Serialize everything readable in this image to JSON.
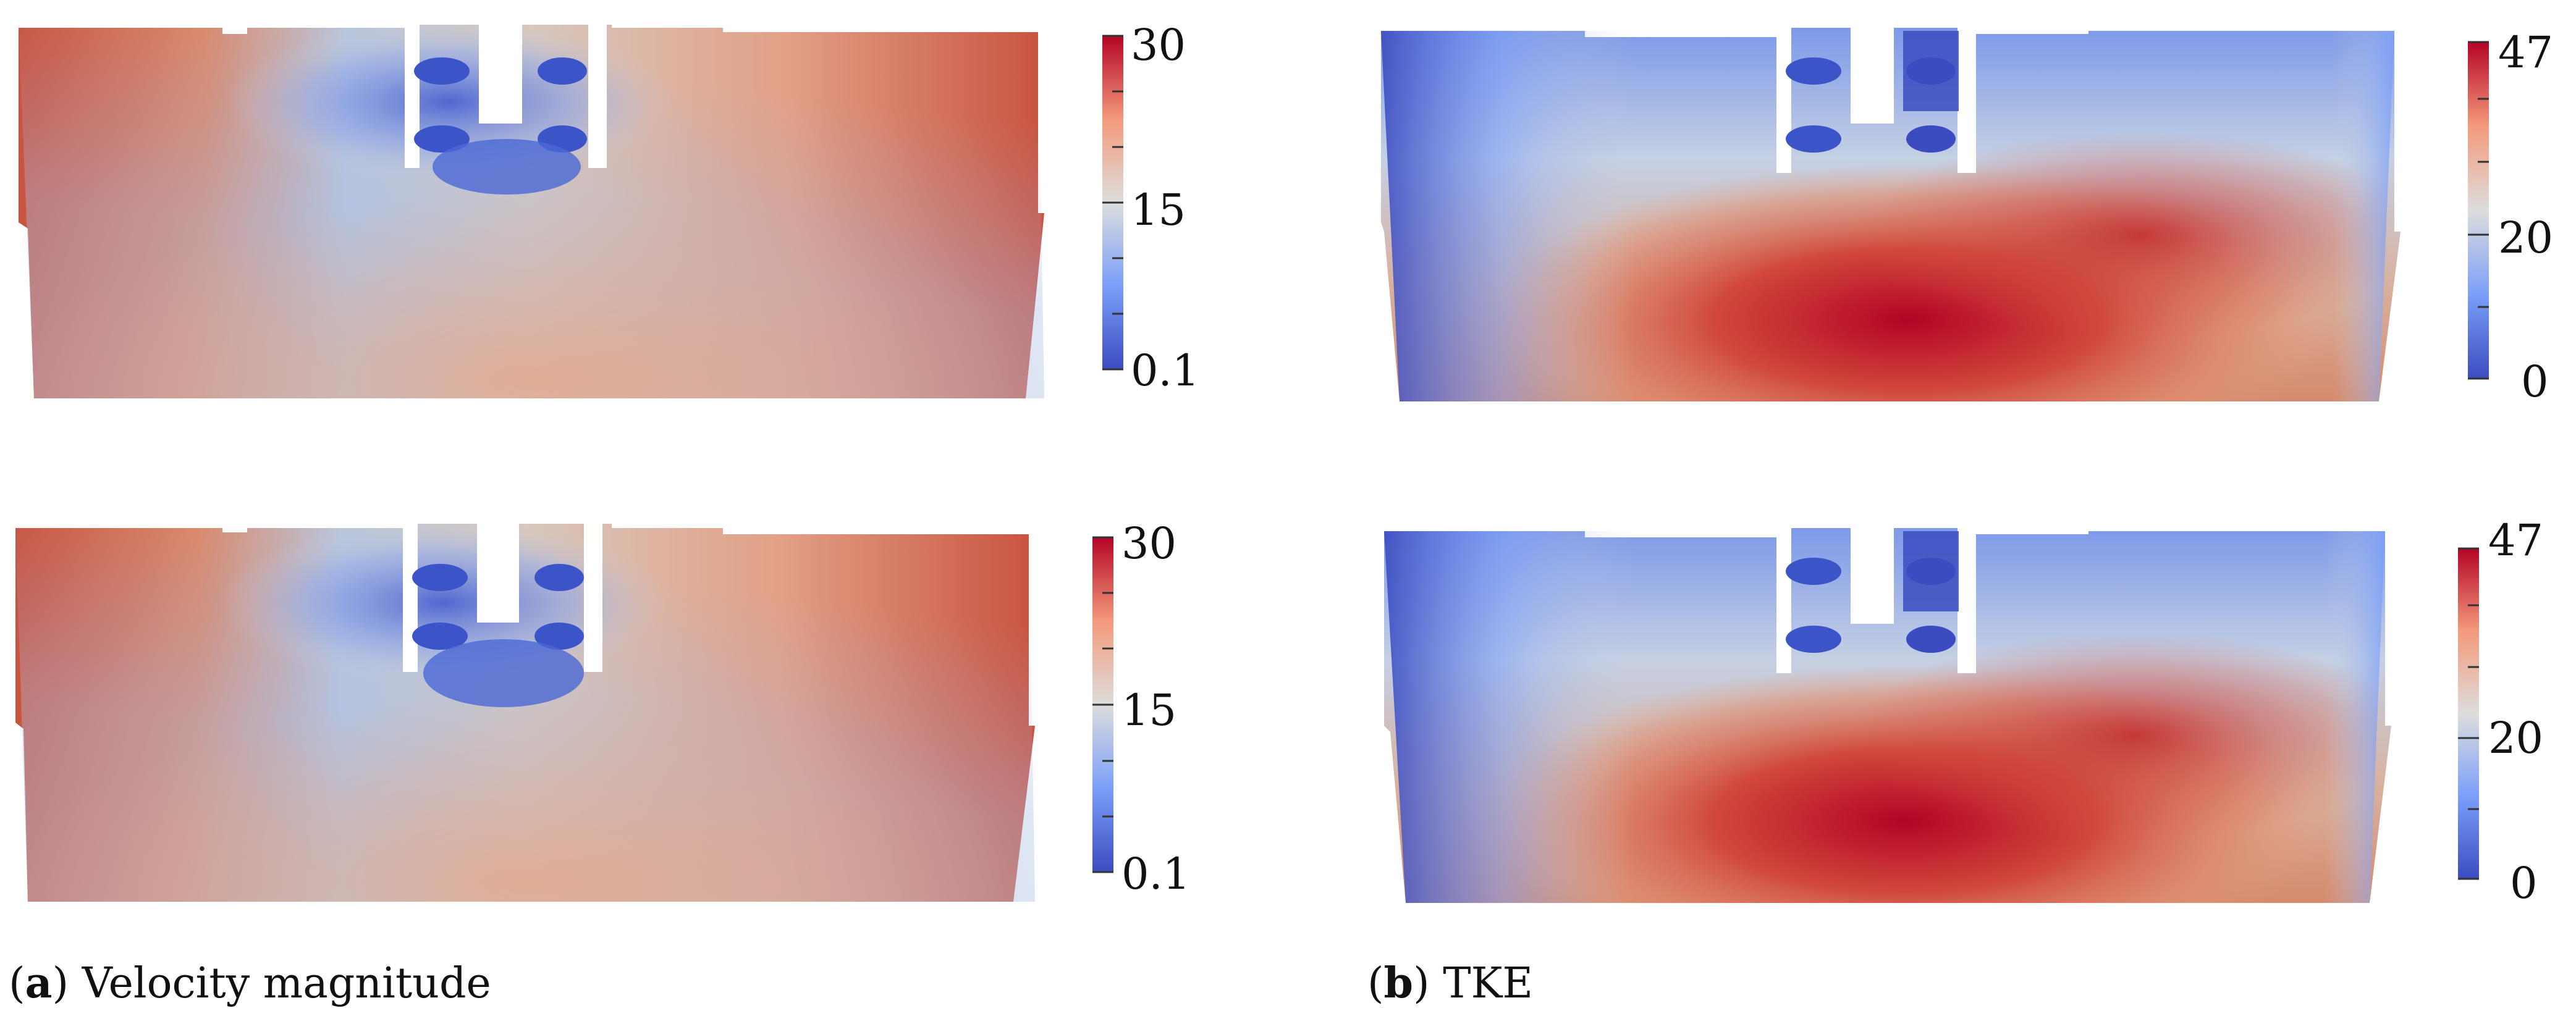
{
  "figure": {
    "panels": [
      {
        "id": "velocity-top",
        "colormap": "coolwarm",
        "colorbar_ticks": [
          "30",
          "15",
          "0.1"
        ],
        "colorbar_range": [
          0.1,
          30
        ]
      },
      {
        "id": "tke-top",
        "colormap": "coolwarm",
        "colorbar_ticks": [
          "47",
          "20",
          "0"
        ],
        "colorbar_range": [
          0,
          47
        ]
      },
      {
        "id": "velocity-bottom",
        "colormap": "coolwarm",
        "colorbar_ticks": [
          "30",
          "15",
          "0.1"
        ],
        "colorbar_range": [
          0.1,
          30
        ]
      },
      {
        "id": "tke-bottom",
        "colormap": "coolwarm",
        "colorbar_ticks": [
          "47",
          "20",
          "0"
        ],
        "colorbar_range": [
          0,
          47
        ]
      }
    ],
    "captions": {
      "a_letter": "a",
      "a_text": "Velocity magnitude",
      "b_letter": "b",
      "b_text": "TKE"
    },
    "colors": {
      "high": "#b40426",
      "mid": "#dddddd",
      "low": "#3b4cc0"
    }
  }
}
